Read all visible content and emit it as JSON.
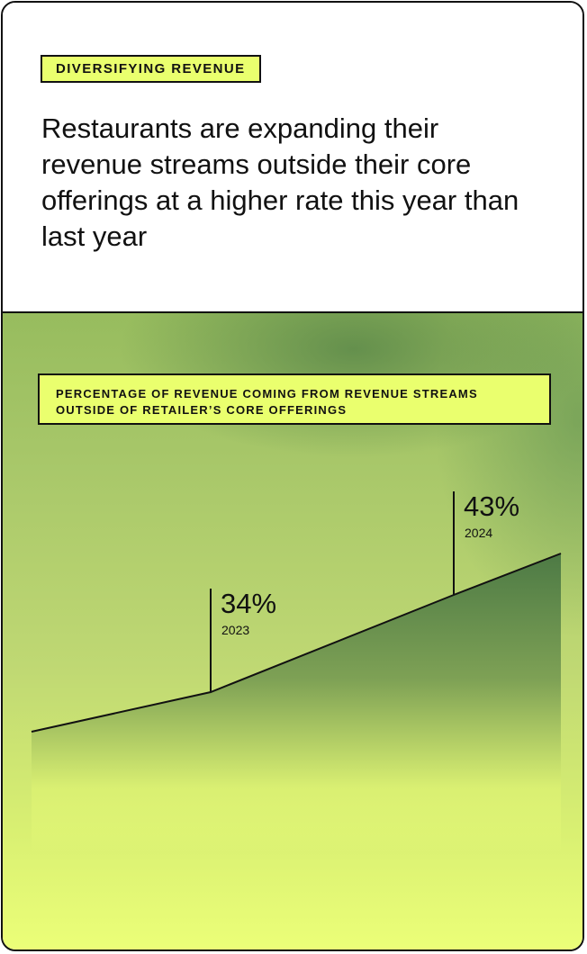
{
  "header": {
    "eyebrow": "DIVERSIFYING REVENUE",
    "headline": "Restaurants are expanding their revenue streams outside their core offerings at a higher rate this year than last year"
  },
  "chart_data": {
    "type": "area",
    "title": "PERCENTAGE OF REVENUE COMING FROM REVENUE STREAMS OUTSIDE OF RETAILER’S CORE OFFERINGS",
    "x": [
      "2023",
      "2024"
    ],
    "series": [
      {
        "values": [
          34,
          43
        ],
        "labels": [
          "34%",
          "43%"
        ]
      }
    ],
    "colors": {
      "area_dark": "#4d7a45",
      "area_light": "#eaff78",
      "line": "#111111"
    }
  }
}
